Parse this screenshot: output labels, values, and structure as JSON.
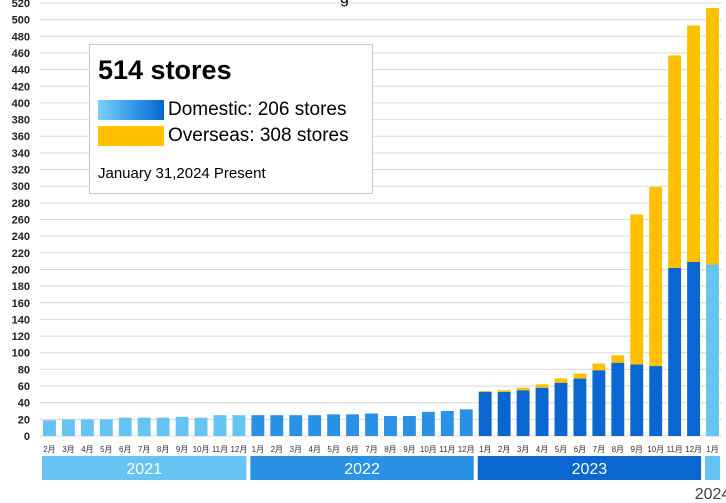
{
  "chart_data": {
    "type": "bar",
    "title": "",
    "xlabel": "",
    "ylabel": "",
    "ylim": [
      0,
      520
    ],
    "yticks": [
      0,
      20,
      40,
      60,
      80,
      100,
      120,
      140,
      160,
      180,
      200,
      220,
      240,
      260,
      280,
      300,
      320,
      340,
      360,
      380,
      400,
      420,
      440,
      460,
      480,
      500,
      520
    ],
    "grid": true,
    "categories": [
      "2月",
      "3月",
      "4月",
      "5月",
      "6月",
      "7月",
      "8月",
      "9月",
      "10月",
      "11月",
      "12月",
      "1月",
      "2月",
      "3月",
      "4月",
      "5月",
      "6月",
      "7月",
      "8月",
      "9月",
      "10月",
      "11月",
      "12月",
      "1月",
      "2月",
      "3月",
      "4月",
      "5月",
      "6月",
      "7月",
      "8月",
      "9月",
      "10月",
      "11月",
      "12月",
      "1月"
    ],
    "stacked": true,
    "series": [
      {
        "name": "Domestic",
        "values": [
          19,
          20,
          20,
          20,
          22,
          22,
          22,
          23,
          22,
          25,
          25,
          25,
          25,
          25,
          25,
          26,
          26,
          27,
          24,
          24,
          29,
          30,
          32,
          53,
          53,
          55,
          58,
          64,
          69,
          79,
          88,
          86,
          84,
          202,
          209,
          206
        ]
      },
      {
        "name": "Overseas",
        "values": [
          0,
          0,
          0,
          0,
          0,
          0,
          0,
          0,
          0,
          0,
          0,
          0,
          0,
          0,
          0,
          0,
          0,
          0,
          0,
          0,
          0,
          0,
          0,
          1,
          2,
          3,
          4,
          5,
          6,
          8,
          9,
          180,
          215,
          255,
          284,
          308
        ]
      }
    ],
    "year_groups": [
      {
        "label": "2021",
        "start": 0,
        "end": 10,
        "color": "#66c4f5"
      },
      {
        "label": "2022",
        "start": 11,
        "end": 22,
        "color": "#2a92e6"
      },
      {
        "label": "2023",
        "start": 23,
        "end": 34,
        "color": "#0a66d0"
      },
      {
        "label": "2024",
        "start": 35,
        "end": 35,
        "color": "#66c4f5"
      }
    ],
    "colors": {
      "y2021": "#66c4f5",
      "y2022": "#2a92e6",
      "y2023": "#0a66d0",
      "y2024": "#66c4f5",
      "overseas": "#ffc000",
      "grid": "#d9d9d9"
    }
  },
  "info": {
    "headline": "514 stores",
    "domestic_label": "Domestic: 206 stores",
    "overseas_label": "Overseas: 308 stores",
    "date_text": "January 31,2024 Present",
    "top_fragment": "g"
  }
}
